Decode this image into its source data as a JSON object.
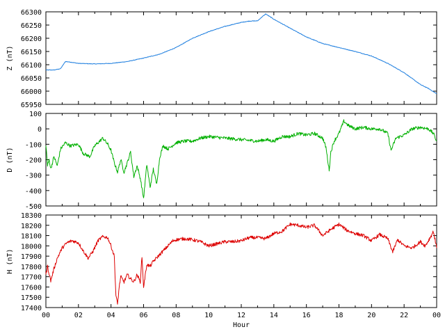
{
  "chart_data": [
    {
      "type": "line",
      "ylabel": "Z (nT)",
      "ylim": [
        65950,
        66300
      ],
      "yticks": [
        65950,
        66000,
        66050,
        66100,
        66150,
        66200,
        66250,
        66300
      ],
      "xlim": [
        0,
        24
      ],
      "color": "#1f7fdf",
      "series": [
        {
          "x": [
            0,
            0.5,
            0.9,
            1.2,
            1.5,
            2,
            3,
            4,
            5,
            6,
            7,
            8,
            9,
            10,
            11,
            12,
            12.5,
            13,
            13.3,
            13.5,
            14,
            15,
            16,
            17,
            18,
            19,
            20,
            21,
            22,
            23,
            23.5,
            24
          ],
          "y": [
            66080,
            66080,
            66085,
            66112,
            66110,
            66105,
            66103,
            66105,
            66112,
            66125,
            66140,
            66165,
            66200,
            66225,
            66245,
            66260,
            66265,
            66266,
            66282,
            66292,
            66272,
            66238,
            66205,
            66180,
            66165,
            66150,
            66133,
            66105,
            66070,
            66025,
            66010,
            65990
          ]
        }
      ]
    },
    {
      "type": "line",
      "ylabel": "D (nT)",
      "ylim": [
        -500,
        100
      ],
      "yticks": [
        -500,
        -400,
        -300,
        -200,
        -100,
        0,
        100
      ],
      "xlim": [
        0,
        24
      ],
      "color": "#00b000",
      "series": [
        {
          "x": [
            0,
            0.1,
            0.2,
            0.3,
            0.5,
            0.7,
            0.9,
            1.2,
            1.5,
            2.0,
            2.3,
            2.7,
            3.0,
            3.3,
            3.5,
            3.8,
            4.0,
            4.2,
            4.4,
            4.6,
            4.8,
            5.0,
            5.2,
            5.4,
            5.6,
            5.8,
            6.0,
            6.2,
            6.4,
            6.6,
            6.8,
            7.0,
            7.2,
            7.5,
            8.0,
            8.5,
            9.0,
            9.5,
            10.0,
            11.0,
            12.0,
            13.0,
            13.5,
            14.0,
            14.5,
            15.0,
            15.5,
            16.0,
            16.5,
            17.0,
            17.2,
            17.4,
            17.5,
            17.7,
            18.0,
            18.3,
            18.6,
            19.0,
            19.5,
            20.0,
            20.5,
            21.0,
            21.2,
            21.5,
            22.0,
            22.5,
            23.0,
            23.5,
            23.8,
            24.0
          ],
          "y": [
            -100,
            -240,
            -200,
            -260,
            -180,
            -240,
            -130,
            -90,
            -110,
            -100,
            -160,
            -180,
            -110,
            -80,
            -60,
            -100,
            -140,
            -220,
            -280,
            -200,
            -280,
            -220,
            -150,
            -310,
            -240,
            -320,
            -450,
            -230,
            -380,
            -260,
            -360,
            -180,
            -110,
            -130,
            -90,
            -80,
            -80,
            -60,
            -50,
            -60,
            -70,
            -80,
            -70,
            -80,
            -50,
            -50,
            -30,
            -40,
            -30,
            -60,
            -120,
            -270,
            -150,
            -80,
            -30,
            50,
            20,
            0,
            10,
            0,
            0,
            -30,
            -140,
            -60,
            -40,
            0,
            10,
            0,
            -30,
            -80
          ]
        }
      ]
    },
    {
      "type": "line",
      "ylabel": "H (nT)",
      "ylim": [
        17400,
        18300
      ],
      "yticks": [
        17400,
        17500,
        17600,
        17700,
        17800,
        17900,
        18000,
        18100,
        18200,
        18300
      ],
      "xlim": [
        0,
        24
      ],
      "xticks": [
        "00",
        "02",
        "04",
        "06",
        "08",
        "10",
        "12",
        "14",
        "16",
        "18",
        "20",
        "22",
        "00"
      ],
      "xlabel": "Hour",
      "color": "#dd0000",
      "series": [
        {
          "x": [
            0,
            0.1,
            0.3,
            0.5,
            0.7,
            1.0,
            1.3,
            1.6,
            2.0,
            2.3,
            2.6,
            2.9,
            3.2,
            3.5,
            3.8,
            4.0,
            4.2,
            4.3,
            4.4,
            4.5,
            4.6,
            4.8,
            5.0,
            5.2,
            5.4,
            5.6,
            5.8,
            5.9,
            6.0,
            6.2,
            6.4,
            6.6,
            6.9,
            7.2,
            7.5,
            7.8,
            8.0,
            8.5,
            9.0,
            9.5,
            10.0,
            10.5,
            11.0,
            11.5,
            12.0,
            12.5,
            13.0,
            13.5,
            14.0,
            14.5,
            15.0,
            15.5,
            16.0,
            16.5,
            17.0,
            17.5,
            18.0,
            18.5,
            19.0,
            19.5,
            20.0,
            20.5,
            21.0,
            21.3,
            21.6,
            22.0,
            22.5,
            23.0,
            23.3,
            23.6,
            23.8,
            24.0
          ],
          "y": [
            17720,
            17800,
            17660,
            17780,
            17880,
            17980,
            18030,
            18050,
            18030,
            17950,
            17880,
            17950,
            18050,
            18090,
            18080,
            18000,
            17900,
            17520,
            17430,
            17600,
            17700,
            17650,
            17720,
            17680,
            17650,
            17720,
            17650,
            17900,
            17600,
            17820,
            17800,
            17850,
            17900,
            17950,
            18000,
            18050,
            18060,
            18070,
            18060,
            18040,
            18000,
            18020,
            18040,
            18040,
            18050,
            18080,
            18080,
            18070,
            18120,
            18140,
            18210,
            18200,
            18180,
            18200,
            18100,
            18160,
            18210,
            18150,
            18120,
            18100,
            18050,
            18110,
            18070,
            17940,
            18060,
            18000,
            17980,
            18040,
            18000,
            18080,
            18140,
            17980
          ]
        }
      ]
    }
  ]
}
